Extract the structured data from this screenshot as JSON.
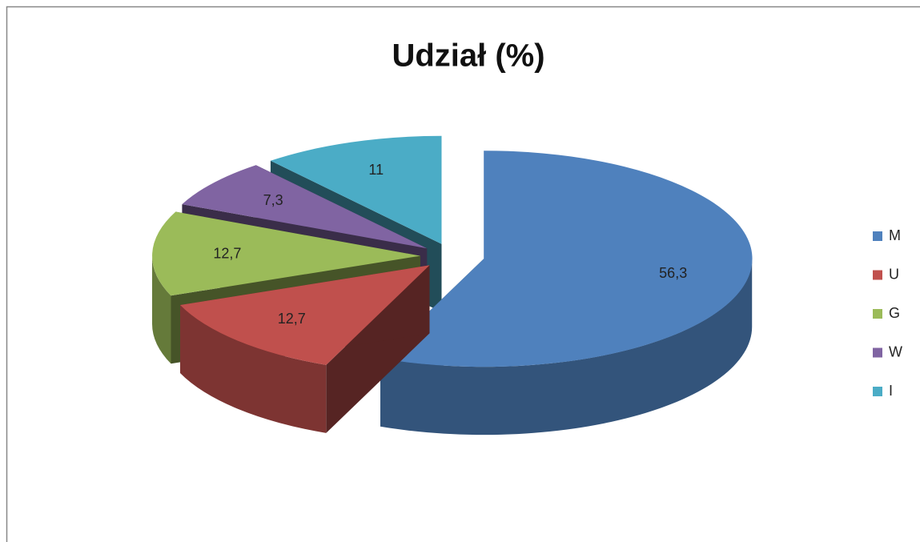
{
  "chart_data": {
    "type": "pie3d",
    "title": "Udział (%)",
    "categories": [
      "M",
      "U",
      "G",
      "W",
      "I"
    ],
    "values": [
      56.3,
      12.7,
      12.7,
      7.3,
      11
    ],
    "value_labels": [
      "56,3",
      "12,7",
      "12,7",
      "7,3",
      "11"
    ],
    "colors": [
      "#4f81bd",
      "#c0504d",
      "#9bbb59",
      "#8064a2",
      "#4bacc6"
    ],
    "exploded": true,
    "legend": "right"
  }
}
